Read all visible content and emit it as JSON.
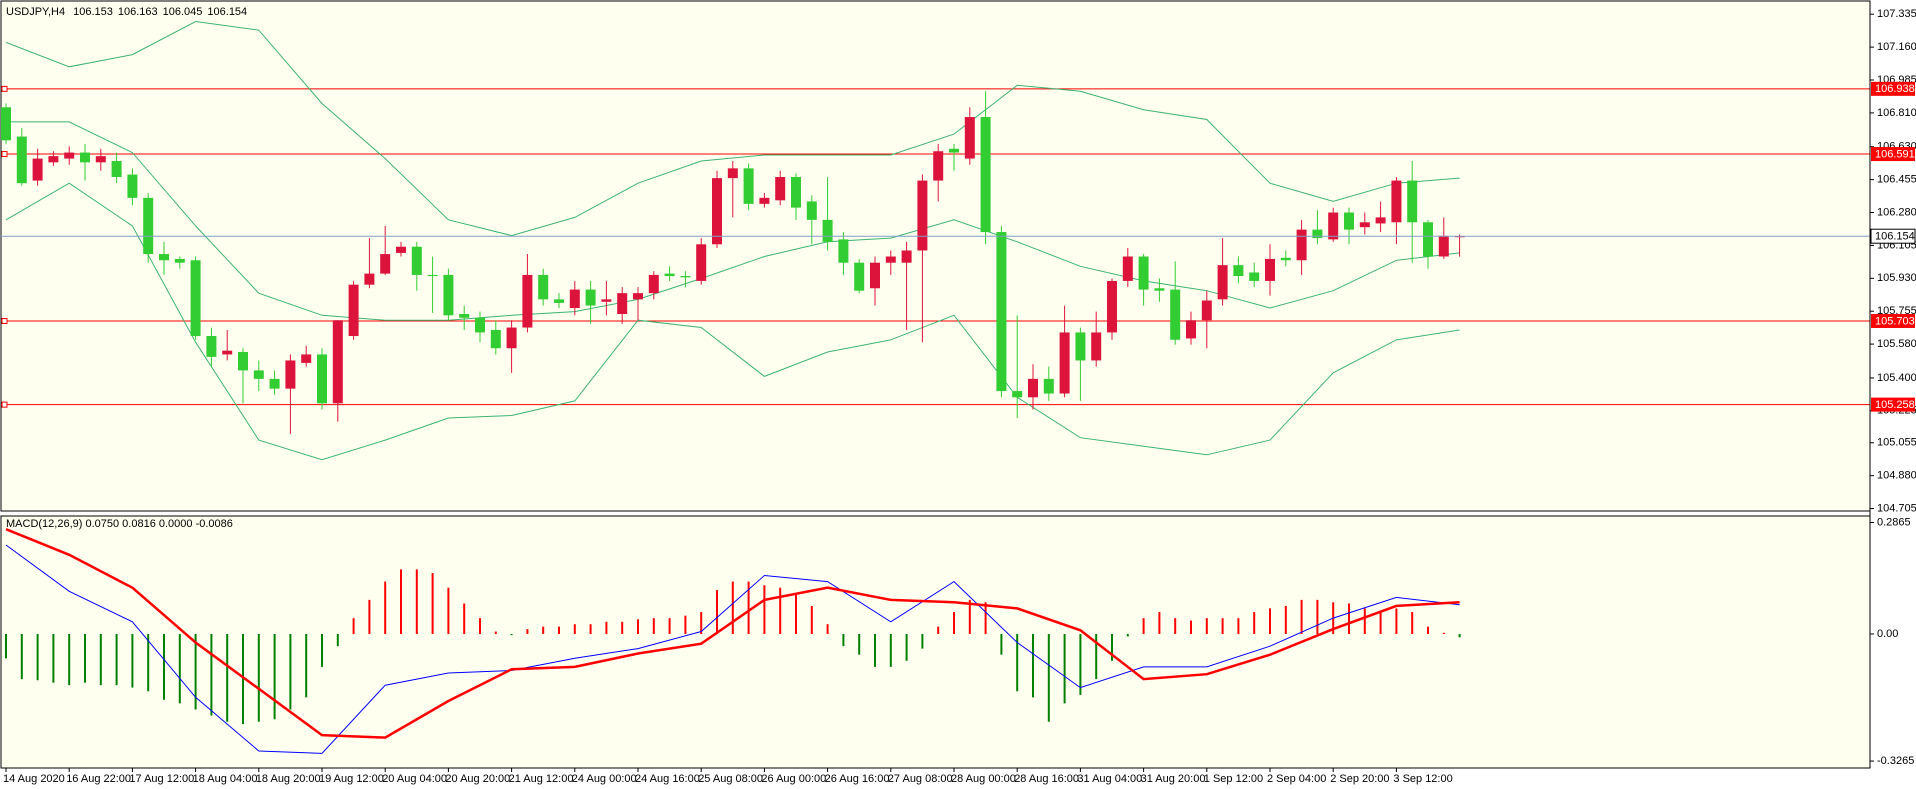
{
  "chart_data": [
    {
      "type": "candlestick",
      "title": "USDJPY,H4",
      "categories": [
        "14 Aug 2020",
        null,
        null,
        null,
        "16 Aug 22:00",
        null,
        null,
        null,
        "17 Aug 12:00",
        null,
        null,
        null,
        "18 Aug 04:00",
        null,
        null,
        null,
        "18 Aug 20:00",
        null,
        null,
        null,
        "19 Aug 12:00",
        null,
        null,
        null,
        "20 Aug 04:00",
        null,
        null,
        null,
        "20 Aug 20:00",
        null,
        null,
        null,
        "21 Aug 12:00",
        null,
        null,
        null,
        "24 Aug 00:00",
        null,
        null,
        null,
        "24 Aug 16:00",
        null,
        null,
        null,
        "25 Aug 08:00",
        null,
        null,
        null,
        "26 Aug 00:00",
        null,
        null,
        null,
        "26 Aug 16:00",
        null,
        null,
        null,
        "27 Aug 08:00",
        null,
        null,
        null,
        "28 Aug 00:00",
        null,
        null,
        null,
        "28 Aug 16:00",
        null,
        null,
        null,
        "31 Aug 04:00",
        null,
        null,
        null,
        "31 Aug 20:00",
        null,
        null,
        null,
        "1 Sep 12:00",
        null,
        null,
        null,
        "2 Sep 04:00",
        null,
        null,
        null,
        "2 Sep 20:00",
        null,
        null,
        null,
        "3 Sep 12:00",
        null,
        null,
        null,
        null
      ],
      "ohlc": [
        [
          106.84,
          106.86,
          106.645,
          106.664
        ],
        [
          106.684,
          106.729,
          106.423,
          106.436
        ],
        [
          106.45,
          106.619,
          106.423,
          106.567
        ],
        [
          106.547,
          106.606,
          106.528,
          106.58
        ],
        [
          106.567,
          106.632,
          106.534,
          106.599
        ],
        [
          106.599,
          106.645,
          106.45,
          106.547
        ],
        [
          106.547,
          106.619,
          106.502,
          106.58
        ],
        [
          106.554,
          106.599,
          106.436,
          106.469
        ],
        [
          106.482,
          106.515,
          106.319,
          106.358
        ],
        [
          106.358,
          106.384,
          106.013,
          106.059
        ],
        [
          106.059,
          106.124,
          105.948,
          106.026
        ],
        [
          106.033,
          106.046,
          105.981,
          106.013
        ],
        [
          106.026,
          106.046,
          105.603,
          105.623
        ],
        [
          105.623,
          105.668,
          105.46,
          105.512
        ],
        [
          105.525,
          105.655,
          105.493,
          105.545
        ],
        [
          105.538,
          105.558,
          105.265,
          105.44
        ],
        [
          105.44,
          105.493,
          105.33,
          105.395
        ],
        [
          105.395,
          105.44,
          105.31,
          105.343
        ],
        [
          105.343,
          105.525,
          105.102,
          105.493
        ],
        [
          105.48,
          105.571,
          105.46,
          105.525
        ],
        [
          105.525,
          105.558,
          105.232,
          105.265
        ],
        [
          105.265,
          105.707,
          105.167,
          105.707
        ],
        [
          105.623,
          105.916,
          105.603,
          105.896
        ],
        [
          105.896,
          106.144,
          105.877,
          105.955
        ],
        [
          105.955,
          106.209,
          105.948,
          106.059
        ],
        [
          106.065,
          106.124,
          106.046,
          106.098
        ],
        [
          106.098,
          106.124,
          105.864,
          105.948
        ],
        [
          105.948,
          106.046,
          105.746,
          105.942
        ],
        [
          105.948,
          105.981,
          105.707,
          105.733
        ],
        [
          105.74,
          105.785,
          105.655,
          105.72
        ],
        [
          105.72,
          105.753,
          105.59,
          105.642
        ],
        [
          105.655,
          105.707,
          105.525,
          105.558
        ],
        [
          105.558,
          105.707,
          105.427,
          105.668
        ],
        [
          105.668,
          106.059,
          105.642,
          105.948
        ],
        [
          105.948,
          105.981,
          105.785,
          105.818
        ],
        [
          105.818,
          105.851,
          105.772,
          105.799
        ],
        [
          105.772,
          105.916,
          105.733,
          105.87
        ],
        [
          105.87,
          105.916,
          105.688,
          105.785
        ],
        [
          105.805,
          105.916,
          105.733,
          105.818
        ],
        [
          105.74,
          105.883,
          105.688,
          105.851
        ],
        [
          105.818,
          105.883,
          105.707,
          105.851
        ],
        [
          105.851,
          105.968,
          105.818,
          105.948
        ],
        [
          105.955,
          105.994,
          105.916,
          105.942
        ],
        [
          105.942,
          105.968,
          105.883,
          105.935
        ],
        [
          105.916,
          106.144,
          105.896,
          106.111
        ],
        [
          106.111,
          106.502,
          106.091,
          106.463
        ],
        [
          106.463,
          106.554,
          106.254,
          106.515
        ],
        [
          106.515,
          106.541,
          106.293,
          106.326
        ],
        [
          106.326,
          106.384,
          106.306,
          106.358
        ],
        [
          106.345,
          106.502,
          106.319,
          106.469
        ],
        [
          106.469,
          106.489,
          106.241,
          106.306
        ],
        [
          106.339,
          106.371,
          106.111,
          106.241
        ],
        [
          106.241,
          106.469,
          106.078,
          106.124
        ],
        [
          106.137,
          106.176,
          105.948,
          106.013
        ],
        [
          106.013,
          106.033,
          105.851,
          105.864
        ],
        [
          105.877,
          106.046,
          105.785,
          106.013
        ],
        [
          106.013,
          106.078,
          105.948,
          106.046
        ],
        [
          106.013,
          106.124,
          105.655,
          106.078
        ],
        [
          106.078,
          106.482,
          105.59,
          106.45
        ],
        [
          106.45,
          106.645,
          106.339,
          106.606
        ],
        [
          106.619,
          106.645,
          106.502,
          106.599
        ],
        [
          106.567,
          106.84,
          106.534,
          106.788
        ],
        [
          106.788,
          106.925,
          106.111,
          106.176
        ],
        [
          106.176,
          106.209,
          105.297,
          105.33
        ],
        [
          105.33,
          105.733,
          105.187,
          105.297
        ],
        [
          105.297,
          105.473,
          105.232,
          105.395
        ],
        [
          105.395,
          105.46,
          105.278,
          105.317
        ],
        [
          105.317,
          105.785,
          105.297,
          105.642
        ],
        [
          105.642,
          105.668,
          105.278,
          105.493
        ],
        [
          105.493,
          105.753,
          105.46,
          105.642
        ],
        [
          105.642,
          105.929,
          105.603,
          105.916
        ],
        [
          105.916,
          106.091,
          105.883,
          106.046
        ],
        [
          106.046,
          106.059,
          105.785,
          105.87
        ],
        [
          105.877,
          105.929,
          105.805,
          105.864
        ],
        [
          105.87,
          106.02,
          105.577,
          105.603
        ],
        [
          105.61,
          105.753,
          105.577,
          105.707
        ],
        [
          105.707,
          105.864,
          105.558,
          105.812
        ],
        [
          105.818,
          106.144,
          105.785,
          106.0
        ],
        [
          106.0,
          106.046,
          105.903,
          105.942
        ],
        [
          105.961,
          106.013,
          105.883,
          105.916
        ],
        [
          105.916,
          106.111,
          105.838,
          106.033
        ],
        [
          106.039,
          106.078,
          105.994,
          106.026
        ],
        [
          106.026,
          106.241,
          105.948,
          106.189
        ],
        [
          106.189,
          106.293,
          106.111,
          106.144
        ],
        [
          106.137,
          106.306,
          106.124,
          106.28
        ],
        [
          106.28,
          106.306,
          106.111,
          106.189
        ],
        [
          106.202,
          106.28,
          106.163,
          106.228
        ],
        [
          106.222,
          106.339,
          106.176,
          106.254
        ],
        [
          106.228,
          106.469,
          106.111,
          106.45
        ],
        [
          106.45,
          106.554,
          106.013,
          106.228
        ],
        [
          106.228,
          106.241,
          105.981,
          106.046
        ],
        [
          106.046,
          106.254,
          106.033,
          106.156
        ],
        [
          106.153,
          106.163,
          106.045,
          106.154
        ]
      ],
      "up_color": "#dc143c",
      "down_color": "#32cd32",
      "lines": [
        {
          "color": "#3cb371",
          "x": [
            0,
            4,
            8,
            12,
            16,
            20,
            24,
            28,
            32,
            36,
            40,
            44,
            48,
            52,
            56,
            60,
            64,
            68,
            72,
            76,
            80,
            84,
            88,
            92
          ],
          "values": [
            107.185,
            107.055,
            107.12,
            107.296,
            107.25,
            106.86,
            106.567,
            106.241,
            106.157,
            106.254,
            106.436,
            106.554,
            106.586,
            106.586,
            106.586,
            106.697,
            106.957,
            106.925,
            106.827,
            106.775,
            106.436,
            106.339,
            106.436,
            106.463
          ]
        },
        {
          "color": "#3cb371",
          "x": [
            0,
            4,
            8,
            12,
            16,
            20,
            24,
            28,
            32,
            36,
            40,
            44,
            48,
            52,
            56,
            60,
            64,
            68,
            72,
            76,
            80,
            84,
            88,
            92
          ],
          "values": [
            106.762,
            106.762,
            106.599,
            106.209,
            105.851,
            105.733,
            105.707,
            105.707,
            105.733,
            105.753,
            105.818,
            105.929,
            106.046,
            106.124,
            106.144,
            106.241,
            106.124,
            105.994,
            105.916,
            105.864,
            105.772,
            105.864,
            106.026,
            106.065
          ]
        },
        {
          "color": "#3cb371",
          "x": [
            0,
            4,
            8,
            12,
            16,
            20,
            24,
            28,
            32,
            36,
            40,
            44,
            48,
            52,
            56,
            60,
            64,
            68,
            72,
            76,
            80,
            84,
            88,
            92
          ],
          "values": [
            106.241,
            106.436,
            106.209,
            105.59,
            105.069,
            104.965,
            105.069,
            105.187,
            105.2,
            105.278,
            105.707,
            105.668,
            105.408,
            105.538,
            105.603,
            105.733,
            105.297,
            105.082,
            105.037,
            104.991,
            105.069,
            105.427,
            105.603,
            105.655
          ]
        }
      ],
      "levels": [
        106.938,
        106.591,
        105.703,
        105.258
      ],
      "level_color": "#ff0000",
      "price_line_color": "#7f9fc8",
      "ylim": [
        104.692,
        107.4
      ],
      "yticks": [
        107.335,
        {
          "value": 107.16,
          "label": "107.160"
        },
        106.985,
        {
          "value": 106.81,
          "label": "106.810"
        },
        {
          "value": 106.63,
          "label": "106.630"
        },
        106.455,
        {
          "value": 106.28,
          "label": "106.280"
        },
        106.105,
        {
          "value": 105.93,
          "label": "105.930"
        },
        105.755,
        {
          "value": 105.58,
          "label": "105.580"
        },
        {
          "value": 105.4,
          "label": "105.400"
        },
        105.225,
        105.055,
        {
          "value": 104.88,
          "label": "104.880"
        },
        104.705
      ],
      "grid": false
    },
    {
      "type": "macd",
      "title": "MACD(12,26,9) 0.0750 0.0816 0.0000 -0.0086",
      "histogram": {
        "up_color": "#ff0000",
        "down_color": "#008000",
        "values": [
          -0.0626,
          -0.1158,
          -0.1189,
          -0.1252,
          -0.1315,
          -0.1252,
          -0.1315,
          -0.1315,
          -0.1377,
          -0.1471,
          -0.169,
          -0.1784,
          -0.1941,
          -0.2097,
          -0.2254,
          -0.2316,
          -0.2254,
          -0.2191,
          -0.1941,
          -0.1628,
          -0.0845,
          -0.0313,
          0.0407,
          0.0876,
          0.1346,
          0.1659,
          0.1659,
          0.1565,
          0.1189,
          0.0783,
          0.0407,
          0.0063,
          -0.0031,
          0.0125,
          0.0188,
          0.0188,
          0.025,
          0.025,
          0.0313,
          0.0313,
          0.0376,
          0.0407,
          0.0407,
          0.047,
          0.0563,
          0.1127,
          0.1346,
          0.1346,
          0.1252,
          0.1189,
          0.1033,
          0.072,
          0.025,
          -0.0313,
          -0.0532,
          -0.0845,
          -0.0845,
          -0.0689,
          -0.0376,
          0.0188,
          0.0563,
          0.0876,
          0.0814,
          -0.0532,
          -0.1471,
          -0.1628,
          -0.2254,
          -0.1784,
          -0.1565,
          -0.1158,
          -0.0689,
          -0.0063,
          0.0407,
          0.0563,
          0.0407,
          0.0344,
          0.0407,
          0.0407,
          0.0407,
          0.0563,
          0.0657,
          0.072,
          0.0876,
          0.0876,
          0.0814,
          0.0783,
          0.0657,
          0.0563,
          0.0657,
          0.0563,
          0.0188,
          0.0031,
          -0.0086
        ]
      },
      "lines": [
        {
          "color": "#0000ff",
          "width": 1,
          "x": [
            0,
            4,
            8,
            12,
            16,
            20,
            24,
            28,
            32,
            36,
            40,
            44,
            48,
            52,
            56,
            60,
            64,
            68,
            72,
            76,
            80,
            84,
            88,
            92
          ],
          "values": [
            0.2285,
            0.1096,
            0.0313,
            -0.1628,
            -0.3005,
            -0.3068,
            -0.1315,
            -0.1002,
            -0.0939,
            -0.0626,
            -0.0376,
            0.0063,
            0.1502,
            0.1346,
            0.0313,
            0.1346,
            -0.0219,
            -0.1377,
            -0.0845,
            -0.0845,
            -0.0313,
            0.0407,
            0.0939,
            0.075
          ]
        },
        {
          "color": "#ff0000",
          "width": 2.5,
          "x": [
            0,
            4,
            8,
            12,
            16,
            20,
            24,
            28,
            32,
            36,
            40,
            44,
            48,
            52,
            56,
            60,
            64,
            68,
            72,
            76,
            80,
            84,
            88,
            92
          ],
          "values": [
            0.2692,
            0.2035,
            0.1189,
            -0.0219,
            -0.1409,
            -0.2598,
            -0.2661,
            -0.1722,
            -0.0908,
            -0.0845,
            -0.0501,
            -0.025,
            0.0876,
            0.1189,
            0.0876,
            0.0814,
            0.0657,
            0.0094,
            -0.1158,
            -0.1033,
            -0.0532,
            0.0125,
            0.072,
            0.0816
          ]
        }
      ],
      "ylim": [
        -0.3443,
        0.3005
      ],
      "yticks": [
        0.2865,
        {
          "value": 0,
          "label": "0.00"
        },
        -0.3265
      ],
      "grid": false
    }
  ]
}
